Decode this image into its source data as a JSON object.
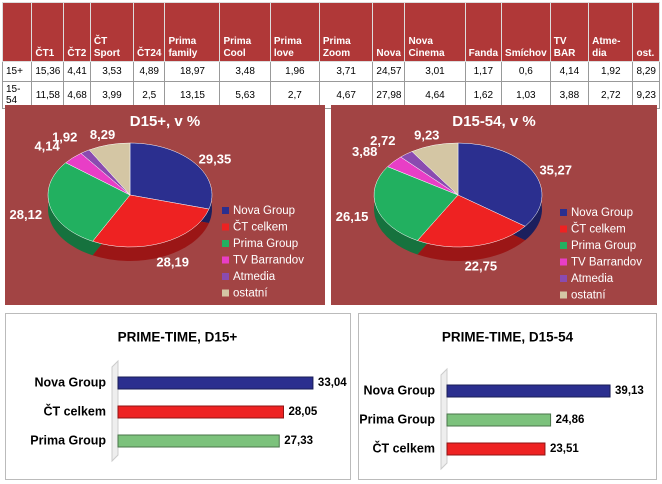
{
  "table": {
    "columns": [
      "ČT1",
      "ČT2",
      "ČT Sport",
      "ČT24",
      "Prima family",
      "Prima Cool",
      "Prima love",
      "Prima Zoom",
      "Nova",
      "Nova Cinema",
      "Fanda",
      "Smíchov",
      "TV BAR",
      "Atme-dia",
      "ost."
    ],
    "rows": [
      {
        "label": "15+",
        "cells": [
          "15,36",
          "4,41",
          "3,53",
          "4,89",
          "18,97",
          "3,48",
          "1,96",
          "3,71",
          "24,57",
          "3,01",
          "1,17",
          "0,6",
          "4,14",
          "1,92",
          "8,29"
        ]
      },
      {
        "label": "15-54",
        "cells": [
          "11,58",
          "4,68",
          "3,99",
          "2,5",
          "13,15",
          "5,63",
          "2,7",
          "4,67",
          "27,98",
          "4,64",
          "1,62",
          "1,03",
          "3,88",
          "2,72",
          "9,23"
        ]
      }
    ]
  },
  "chart_data": [
    {
      "type": "pie",
      "title": "D15+, v %",
      "categories": [
        "Nova Group",
        "ČT celkem",
        "Prima Group",
        "TV Barrandov",
        "Atmedia",
        "ostatní"
      ],
      "values": [
        29.35,
        28.19,
        28.12,
        4.14,
        1.92,
        8.29
      ],
      "value_labels": [
        "29,35",
        "28,19",
        "28,12",
        "4,14",
        "1,92",
        "8,29"
      ],
      "colors": [
        "#2b2f8f",
        "#ee2222",
        "#22b060",
        "#e83ec6",
        "#8a4bb0",
        "#d4c6a4"
      ]
    },
    {
      "type": "pie",
      "title": "D15-54, v %",
      "categories": [
        "Nova Group",
        "ČT celkem",
        "Prima Group",
        "TV Barrandov",
        "Atmedia",
        "ostatní"
      ],
      "values": [
        35.27,
        22.75,
        26.15,
        3.88,
        2.72,
        9.23
      ],
      "value_labels": [
        "35,27",
        "22,75",
        "26,15",
        "3,88",
        "2,72",
        "9,23"
      ],
      "colors": [
        "#2b2f8f",
        "#ee2222",
        "#22b060",
        "#e83ec6",
        "#8a4bb0",
        "#d4c6a4"
      ]
    },
    {
      "type": "hbar",
      "title": "PRIME-TIME, D15+",
      "categories": [
        "Nova Group",
        "ČT celkem",
        "Prima Group"
      ],
      "values": [
        33.04,
        28.05,
        27.33
      ],
      "value_labels": [
        "33,04",
        "28,05",
        "27,33"
      ],
      "colors": [
        "#2b2f8f",
        "#ee2222",
        "#7cc27c"
      ],
      "xlim": [
        0,
        40
      ]
    },
    {
      "type": "hbar",
      "title": "PRIME-TIME, D15-54",
      "categories": [
        "Nova Group",
        "Prima Group",
        "ČT celkem"
      ],
      "values": [
        39.13,
        24.86,
        23.51
      ],
      "value_labels": [
        "39,13",
        "24,86",
        "23,51"
      ],
      "colors": [
        "#2b2f8f",
        "#7cc27c",
        "#ee2222"
      ],
      "xlim": [
        0,
        42
      ]
    }
  ]
}
